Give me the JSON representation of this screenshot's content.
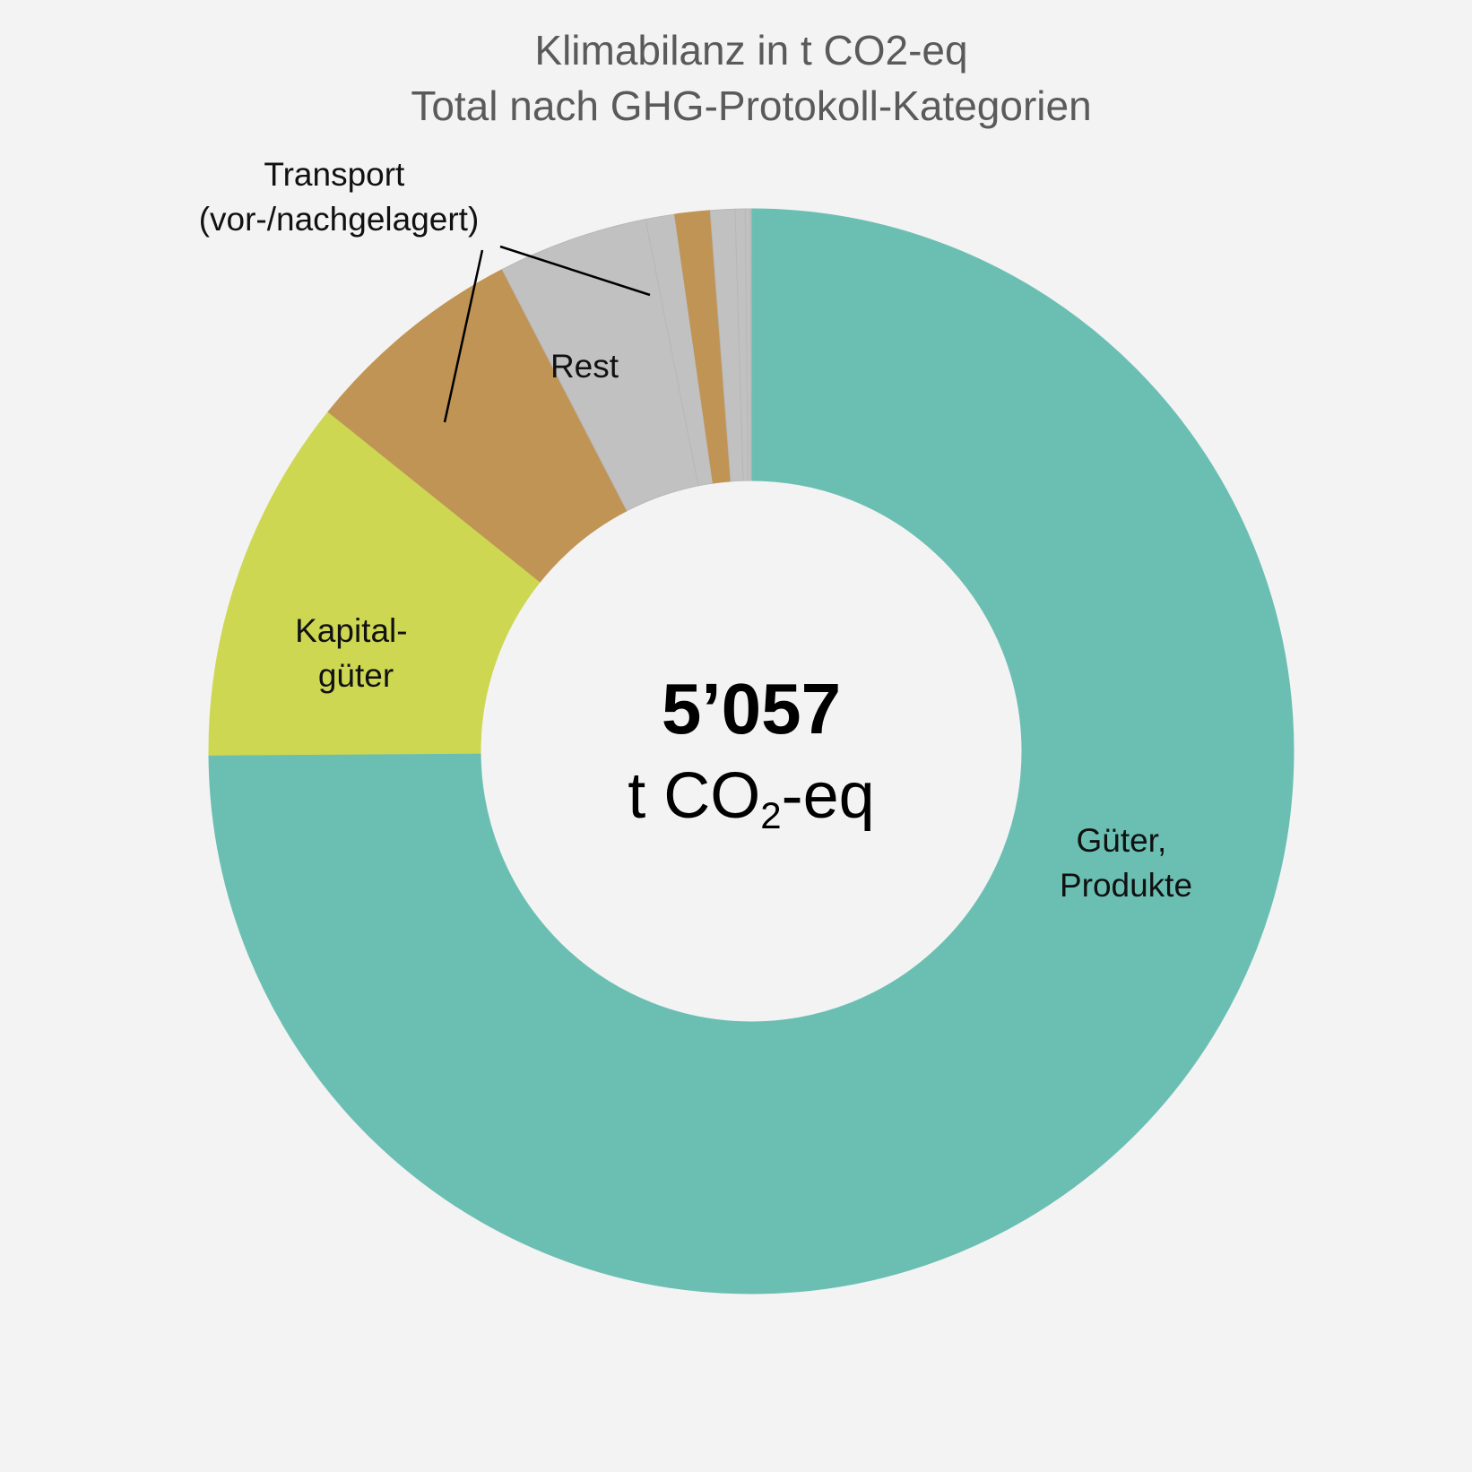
{
  "chart_data": {
    "type": "pie",
    "style": "donut",
    "title": "Klimabilanz in t CO2-eq",
    "subtitle": "Total nach GHG-Protokoll-Kategorien",
    "center": {
      "value": "5’057",
      "unit_prefix": "t CO",
      "unit_subscript": "2",
      "unit_suffix": "-eq"
    },
    "slices": [
      {
        "label": "Güter, Produkte",
        "value": 3787,
        "color": "#6bbfb2"
      },
      {
        "label": "Kapital-güter",
        "value": 550,
        "color": "#cdd752"
      },
      {
        "label": "Transport (vor-/nachgelagert)",
        "value": 336,
        "color": "#c09455"
      },
      {
        "label": "Rest",
        "value": 226,
        "color": "#c1c1c1"
      },
      {
        "label": "",
        "value": 44,
        "color": "#c1c1c1"
      },
      {
        "label": "",
        "value": 53,
        "color": "#c09455"
      },
      {
        "label": "",
        "value": 37,
        "color": "#c1c1c1"
      },
      {
        "label": "",
        "value": 15,
        "color": "#c1c1c1"
      },
      {
        "label": "",
        "value": 8,
        "color": "#c1c1c1"
      },
      {
        "label": "",
        "value": 1,
        "color": "#c1c1c1"
      }
    ],
    "direction": "clockwise",
    "start": "12 o'clock"
  },
  "labels": {
    "gueter": [
      "Güter,",
      "Produkte"
    ],
    "kapital": [
      "Kapital-",
      "güter"
    ],
    "transport": [
      "Transport",
      "(vor-/nachgelagert)"
    ],
    "rest": [
      "Rest"
    ]
  }
}
